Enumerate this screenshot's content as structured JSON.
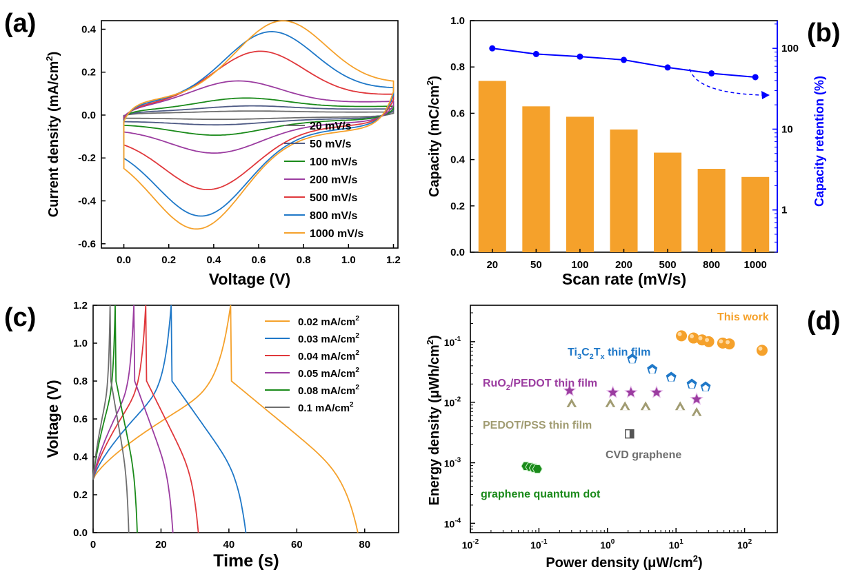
{
  "colors": {
    "orange": "#f5a12b",
    "blue": "#0000ff",
    "series": [
      "#6e6e6e",
      "#4e5a84",
      "#1a8a1a",
      "#9b3ca0",
      "#e0383c",
      "#1f78c8",
      "#f5a12b"
    ]
  },
  "chart_data": [
    {
      "panel": "(a)",
      "type": "line",
      "xlabel": "Voltage (V)",
      "ylabel": "Current density (mA/cm",
      "ylabel_sup": "2",
      "ylabel_end": ")",
      "xlim": [
        -0.1,
        1.22
      ],
      "ylim": [
        -0.62,
        0.44
      ],
      "xticks": [
        0.0,
        0.2,
        0.4,
        0.6,
        0.8,
        1.0,
        1.2
      ],
      "yticks": [
        -0.6,
        -0.4,
        -0.2,
        0.0,
        0.2,
        0.4
      ],
      "legend_position": "bottom-right",
      "series": [
        {
          "name": "20 mV/s",
          "params": {
            "a": 0.015,
            "b": 0.008,
            "Ia": 0.008,
            "Ic": -0.008,
            "Va": 0.55,
            "Vc": 0.45
          }
        },
        {
          "name": "50 mV/s",
          "params": {
            "a": 0.035,
            "b": 0.014,
            "Ia": 0.022,
            "Ic": -0.022,
            "Va": 0.55,
            "Vc": 0.43
          }
        },
        {
          "name": "100 mV/s",
          "params": {
            "a": 0.05,
            "b": 0.02,
            "Ia": 0.05,
            "Ic": -0.06,
            "Va": 0.53,
            "Vc": 0.42
          }
        },
        {
          "name": "200 mV/s",
          "params": {
            "a": 0.08,
            "b": 0.03,
            "Ia": 0.115,
            "Ic": -0.125,
            "Va": 0.5,
            "Vc": 0.41
          }
        },
        {
          "name": "500 mV/s",
          "params": {
            "a": 0.13,
            "b": 0.04,
            "Ia": 0.23,
            "Ic": -0.27,
            "Va": 0.6,
            "Vc": 0.38
          }
        },
        {
          "name": "800 mV/s",
          "params": {
            "a": 0.17,
            "b": 0.05,
            "Ia": 0.3,
            "Ic": -0.37,
            "Va": 0.65,
            "Vc": 0.35
          }
        },
        {
          "name": "1000 mV/s",
          "params": {
            "a": 0.2,
            "b": 0.06,
            "Ia": 0.33,
            "Ic": -0.41,
            "Va": 0.7,
            "Vc": 0.33
          }
        }
      ]
    },
    {
      "panel": "(b)",
      "type": "bar",
      "xlabel": "Scan rate (mV/s)",
      "ylabel": "Capacity (mC/cm",
      "ylabel_sup": "2",
      "ylabel_end": ")",
      "y2label": "Capacity retention (%)",
      "categories": [
        "20",
        "50",
        "100",
        "200",
        "500",
        "800",
        "1000"
      ],
      "values": [
        0.74,
        0.63,
        0.585,
        0.53,
        0.43,
        0.36,
        0.325
      ],
      "ylim": [
        0,
        1.0
      ],
      "yticks": [
        0.0,
        0.2,
        0.4,
        0.6,
        0.8,
        1.0
      ],
      "y2_scale": "log",
      "y2lim": [
        0.3,
        220
      ],
      "y2ticks": [
        1,
        10,
        100
      ],
      "retention": [
        100,
        85,
        79,
        72,
        58,
        49,
        44
      ]
    },
    {
      "panel": "(c)",
      "type": "line",
      "xlabel": "Time (s)",
      "ylabel": "Voltage (V)",
      "xlim": [
        0,
        90
      ],
      "ylim": [
        0,
        1.2
      ],
      "xticks": [
        0,
        20,
        40,
        60,
        80
      ],
      "yticks": [
        0.0,
        0.2,
        0.4,
        0.6,
        0.8,
        1.0,
        1.2
      ],
      "legend_position": "top-right",
      "series": [
        {
          "name": "0.02 mA/cm",
          "sup": "2",
          "tc": 40.5,
          "td": 78
        },
        {
          "name": "0.03 mA/cm",
          "sup": "2",
          "tc": 23,
          "td": 45
        },
        {
          "name": "0.04 mA/cm",
          "sup": "2",
          "tc": 15.5,
          "td": 31
        },
        {
          "name": "0.05 mA/cm",
          "sup": "2",
          "tc": 12,
          "td": 23.5
        },
        {
          "name": "0.08 mA/cm",
          "sup": "2",
          "tc": 6.5,
          "td": 13
        },
        {
          "name": "0.1 mA/cm",
          "sup": "2",
          "tc": 5,
          "td": 10.5
        }
      ]
    },
    {
      "panel": "(d)",
      "type": "scatter",
      "xlabel": "Power density (μW/cm",
      "xlabel_sup": "2",
      "xlabel_end": ")",
      "ylabel": "Energy density (μWh/cm",
      "ylabel_sup": "2",
      "ylabel_end": ")",
      "x_scale": "log",
      "y_scale": "log",
      "xlim": [
        0.01,
        300
      ],
      "ylim": [
        7e-05,
        0.4
      ],
      "xticks": [
        0.01,
        0.1,
        1,
        10,
        100
      ],
      "yticks": [
        0.0001,
        0.001,
        0.01,
        0.1
      ],
      "series": [
        {
          "name": "This work",
          "marker": "sphere",
          "points": [
            [
              12,
              0.125
            ],
            [
              18,
              0.115
            ],
            [
              24,
              0.107
            ],
            [
              30,
              0.1
            ],
            [
              48,
              0.095
            ],
            [
              60,
              0.092
            ],
            [
              180,
              0.072
            ]
          ]
        },
        {
          "name": "Ti3C2Tx thin film",
          "marker": "pentagon",
          "points": [
            [
              2.3,
              0.052
            ],
            [
              4.5,
              0.035
            ],
            [
              8.5,
              0.026
            ],
            [
              17,
              0.02
            ],
            [
              27,
              0.018
            ]
          ]
        },
        {
          "name": "RuO2/PEDOT thin film",
          "marker": "star",
          "points": [
            [
              0.28,
              0.0155
            ],
            [
              1.2,
              0.0145
            ],
            [
              2.2,
              0.0145
            ],
            [
              5.2,
              0.0145
            ],
            [
              20,
              0.0112
            ]
          ]
        },
        {
          "name": "PEDOT/PSS thin film",
          "marker": "triangle",
          "points": [
            [
              0.3,
              0.0095
            ],
            [
              1.1,
              0.0095
            ],
            [
              1.8,
              0.0085
            ],
            [
              3.6,
              0.0085
            ],
            [
              11.5,
              0.0085
            ],
            [
              20,
              0.0068
            ]
          ]
        },
        {
          "name": "CVD graphene",
          "marker": "half-square",
          "points": [
            [
              2.1,
              0.003
            ]
          ]
        },
        {
          "name": "graphene quantum dot",
          "marker": "hexagon",
          "points": [
            [
              0.065,
              0.00088
            ],
            [
              0.075,
              0.00085
            ],
            [
              0.085,
              0.00082
            ],
            [
              0.095,
              0.00079
            ]
          ]
        }
      ],
      "annotations": {
        "this_work": "This work",
        "ti_pre": "Ti",
        "ti_s1": "3",
        "ti_mid": "C",
        "ti_s2": "2",
        "ti_mid2": "T",
        "ti_s3": "x",
        "ti_post": " thin film",
        "ru_pre": "RuO",
        "ru_s1": "2",
        "ru_post": "/PEDOT thin film",
        "pedot": "PEDOT/PSS thin film",
        "cvd": "CVD graphene",
        "gqd": "graphene quantum dot"
      }
    }
  ],
  "panel_labels": [
    "(a)",
    "(b)",
    "(c)",
    "(d)"
  ]
}
